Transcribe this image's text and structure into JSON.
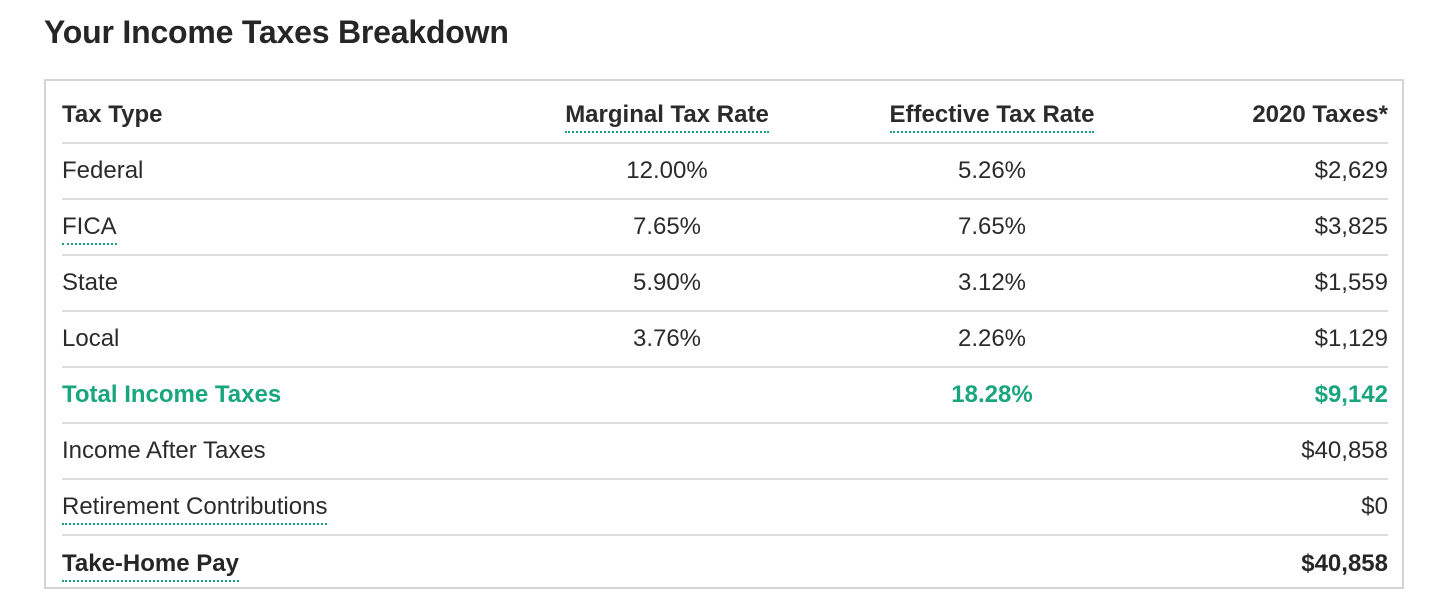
{
  "title": "Your Income Taxes Breakdown",
  "headers": {
    "tax_type": "Tax Type",
    "marginal": "Marginal Tax Rate",
    "effective": "Effective Tax Rate",
    "taxes": "2020 Taxes*"
  },
  "rows": [
    {
      "type": "Federal",
      "marginal": "12.00%",
      "effective": "5.26%",
      "taxes": "$2,629"
    },
    {
      "type": "FICA",
      "marginal": "7.65%",
      "effective": "7.65%",
      "taxes": "$3,825"
    },
    {
      "type": "State",
      "marginal": "5.90%",
      "effective": "3.12%",
      "taxes": "$1,559"
    },
    {
      "type": "Local",
      "marginal": "3.76%",
      "effective": "2.26%",
      "taxes": "$1,129"
    }
  ],
  "total": {
    "label": "Total Income Taxes",
    "effective": "18.28%",
    "taxes": "$9,142"
  },
  "after_taxes": {
    "label": "Income After Taxes",
    "value": "$40,858"
  },
  "retirement": {
    "label": "Retirement Contributions",
    "value": "$0"
  },
  "take_home": {
    "label": "Take-Home Pay",
    "value": "$40,858"
  },
  "colors": {
    "accent_green": "#1aa67c",
    "tooltip_underline": "#1a9e84"
  }
}
